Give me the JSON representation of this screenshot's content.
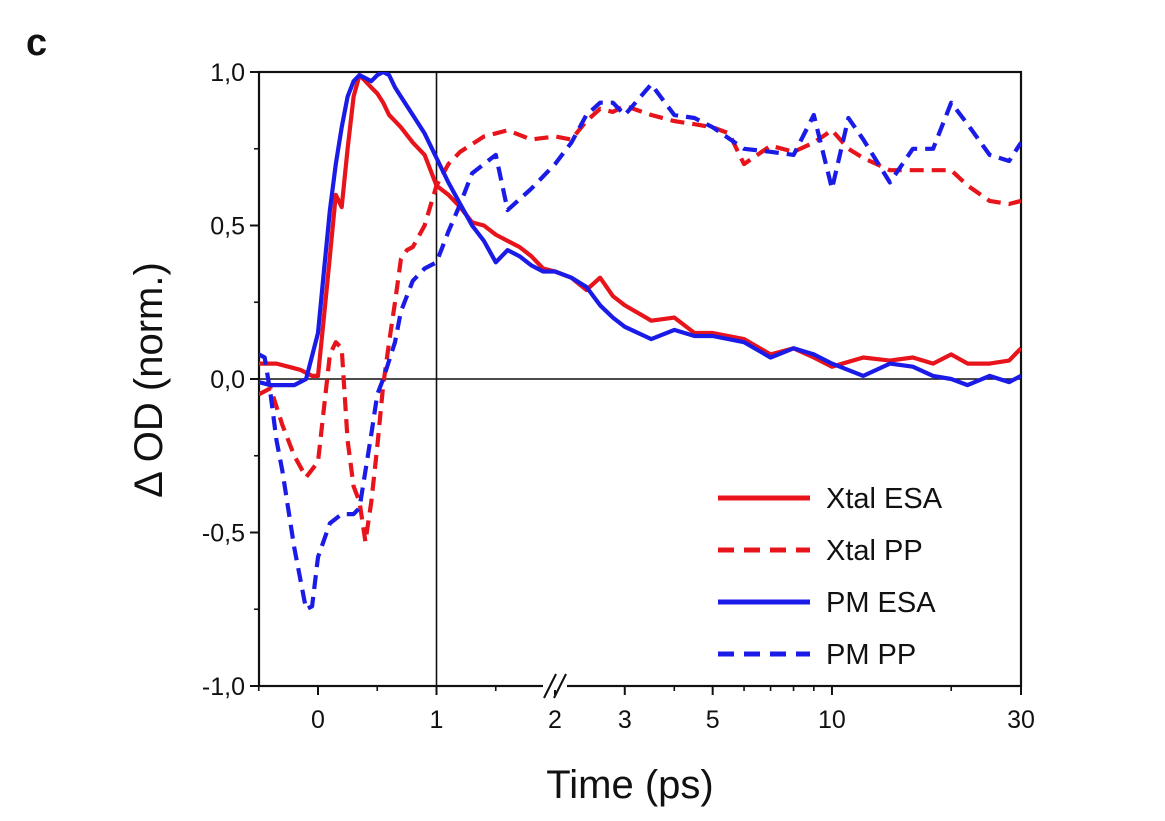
{
  "panel_label": "c",
  "chart_data": {
    "type": "line",
    "xlabel": "Time (ps)",
    "ylabel": "Δ OD (norm.)",
    "ylim": [
      -1.0,
      1.0
    ],
    "x_axis": {
      "scale": "piecewise: linear from -0.5 to 2 ps (axis break at 2), logarithmic from 2 to 30 ps",
      "range": [
        -0.5,
        30
      ],
      "break_at": 2,
      "ticks": [
        0,
        1,
        2,
        3,
        5,
        10,
        30
      ],
      "tick_labels": [
        "0",
        "1",
        "2",
        "3",
        "5",
        "10",
        "30"
      ]
    },
    "y_axis": {
      "ticks": [
        -1.0,
        -0.5,
        0.0,
        0.5,
        1.0
      ],
      "tick_labels": [
        "-1,0",
        "-0,5",
        "0,0",
        "0,5",
        "1,0"
      ]
    },
    "reference_lines": {
      "horizontal_at_y": 0.0,
      "vertical_at_x": 1
    },
    "legend_position": "lower-right",
    "series": [
      {
        "name": "Xtal ESA",
        "color": "#e8141b",
        "style": "solid",
        "x": [
          -0.5,
          -0.35,
          -0.25,
          -0.15,
          -0.05,
          0.0,
          0.05,
          0.1,
          0.15,
          0.2,
          0.25,
          0.3,
          0.35,
          0.4,
          0.45,
          0.5,
          0.55,
          0.6,
          0.65,
          0.7,
          0.8,
          0.9,
          1.0,
          1.1,
          1.2,
          1.3,
          1.4,
          1.5,
          1.6,
          1.7,
          1.8,
          1.9,
          2.0,
          2.2,
          2.4,
          2.6,
          2.8,
          3.0,
          3.5,
          4.0,
          4.5,
          5.0,
          6.0,
          7.0,
          8.0,
          9.0,
          10.0,
          12.0,
          14.0,
          16.0,
          18.0,
          20.0,
          22.0,
          25.0,
          28.0,
          30.0
        ],
        "y": [
          0.05,
          0.05,
          0.04,
          0.03,
          0.01,
          0.01,
          0.2,
          0.4,
          0.6,
          0.56,
          0.75,
          0.92,
          0.99,
          0.97,
          0.95,
          0.93,
          0.9,
          0.86,
          0.84,
          0.82,
          0.77,
          0.73,
          0.63,
          0.6,
          0.56,
          0.51,
          0.5,
          0.47,
          0.45,
          0.43,
          0.4,
          0.36,
          0.35,
          0.33,
          0.29,
          0.33,
          0.27,
          0.24,
          0.19,
          0.2,
          0.15,
          0.15,
          0.13,
          0.08,
          0.1,
          0.07,
          0.04,
          0.07,
          0.06,
          0.07,
          0.05,
          0.08,
          0.05,
          0.05,
          0.06,
          0.1
        ]
      },
      {
        "name": "Xtal PP",
        "color": "#e8141b",
        "style": "dashed",
        "x": [
          -0.5,
          -0.4,
          -0.3,
          -0.2,
          -0.1,
          0.0,
          0.1,
          0.15,
          0.2,
          0.25,
          0.3,
          0.35,
          0.4,
          0.45,
          0.5,
          0.55,
          0.6,
          0.65,
          0.7,
          0.75,
          0.8,
          0.9,
          1.0,
          1.1,
          1.2,
          1.4,
          1.6,
          1.8,
          2.0,
          2.2,
          2.4,
          2.6,
          2.8,
          3.0,
          3.5,
          4.0,
          4.5,
          5.0,
          5.5,
          6.0,
          7.0,
          8.0,
          9.0,
          10.0,
          11.0,
          12.0,
          14.0,
          16.0,
          18.0,
          20.0,
          22.0,
          25.0,
          28.0,
          30.0
        ],
        "y": [
          -0.05,
          -0.03,
          -0.15,
          -0.25,
          -0.32,
          -0.27,
          0.08,
          0.12,
          0.1,
          -0.2,
          -0.35,
          -0.4,
          -0.53,
          -0.4,
          -0.22,
          -0.02,
          0.12,
          0.25,
          0.39,
          0.42,
          0.43,
          0.5,
          0.63,
          0.7,
          0.74,
          0.79,
          0.81,
          0.78,
          0.79,
          0.78,
          0.84,
          0.88,
          0.87,
          0.89,
          0.86,
          0.84,
          0.83,
          0.82,
          0.8,
          0.7,
          0.76,
          0.74,
          0.77,
          0.81,
          0.75,
          0.72,
          0.68,
          0.68,
          0.68,
          0.68,
          0.63,
          0.58,
          0.57,
          0.58
        ]
      },
      {
        "name": "PM ESA",
        "color": "#1b1be8",
        "style": "solid",
        "x": [
          -0.5,
          -0.4,
          -0.3,
          -0.2,
          -0.1,
          0.0,
          0.05,
          0.1,
          0.15,
          0.2,
          0.25,
          0.3,
          0.35,
          0.4,
          0.45,
          0.5,
          0.55,
          0.6,
          0.65,
          0.7,
          0.8,
          0.9,
          1.0,
          1.1,
          1.2,
          1.3,
          1.4,
          1.5,
          1.6,
          1.7,
          1.8,
          1.9,
          2.0,
          2.2,
          2.4,
          2.6,
          2.8,
          3.0,
          3.5,
          4.0,
          4.5,
          5.0,
          6.0,
          7.0,
          8.0,
          9.0,
          10.0,
          12.0,
          14.0,
          16.0,
          18.0,
          20.0,
          22.0,
          25.0,
          28.0,
          30.0
        ],
        "y": [
          -0.01,
          -0.02,
          -0.02,
          -0.02,
          0.0,
          0.15,
          0.35,
          0.55,
          0.7,
          0.82,
          0.92,
          0.97,
          0.99,
          0.98,
          0.97,
          0.99,
          1.0,
          0.99,
          0.95,
          0.92,
          0.86,
          0.8,
          0.72,
          0.64,
          0.57,
          0.5,
          0.45,
          0.38,
          0.42,
          0.4,
          0.37,
          0.35,
          0.35,
          0.33,
          0.3,
          0.24,
          0.2,
          0.17,
          0.13,
          0.16,
          0.14,
          0.14,
          0.12,
          0.07,
          0.1,
          0.08,
          0.05,
          0.01,
          0.05,
          0.04,
          0.01,
          0.0,
          -0.02,
          0.01,
          -0.01,
          0.01
        ]
      },
      {
        "name": "PM PP",
        "color": "#1b1be8",
        "style": "dashed",
        "x": [
          -0.5,
          -0.45,
          -0.4,
          -0.35,
          -0.3,
          -0.2,
          -0.1,
          -0.05,
          0.0,
          0.1,
          0.2,
          0.3,
          0.35,
          0.4,
          0.45,
          0.5,
          0.55,
          0.6,
          0.65,
          0.7,
          0.8,
          0.9,
          1.0,
          1.1,
          1.2,
          1.3,
          1.4,
          1.5,
          1.6,
          1.8,
          2.0,
          2.2,
          2.4,
          2.6,
          2.8,
          3.0,
          3.5,
          4.0,
          4.5,
          5.0,
          6.0,
          7.0,
          8.0,
          9.0,
          10.0,
          11.0,
          12.0,
          14.0,
          16.0,
          18.0,
          20.0,
          22.0,
          25.0,
          28.0,
          30.0
        ],
        "y": [
          0.08,
          0.07,
          -0.05,
          -0.2,
          -0.3,
          -0.55,
          -0.75,
          -0.74,
          -0.58,
          -0.47,
          -0.44,
          -0.44,
          -0.42,
          -0.3,
          -0.18,
          -0.05,
          0.0,
          0.06,
          0.12,
          0.22,
          0.32,
          0.36,
          0.38,
          0.48,
          0.57,
          0.67,
          0.7,
          0.73,
          0.55,
          0.62,
          0.7,
          0.77,
          0.86,
          0.9,
          0.9,
          0.86,
          0.96,
          0.86,
          0.85,
          0.82,
          0.75,
          0.74,
          0.73,
          0.86,
          0.62,
          0.85,
          0.78,
          0.64,
          0.75,
          0.75,
          0.9,
          0.83,
          0.73,
          0.71,
          0.77
        ]
      }
    ]
  }
}
